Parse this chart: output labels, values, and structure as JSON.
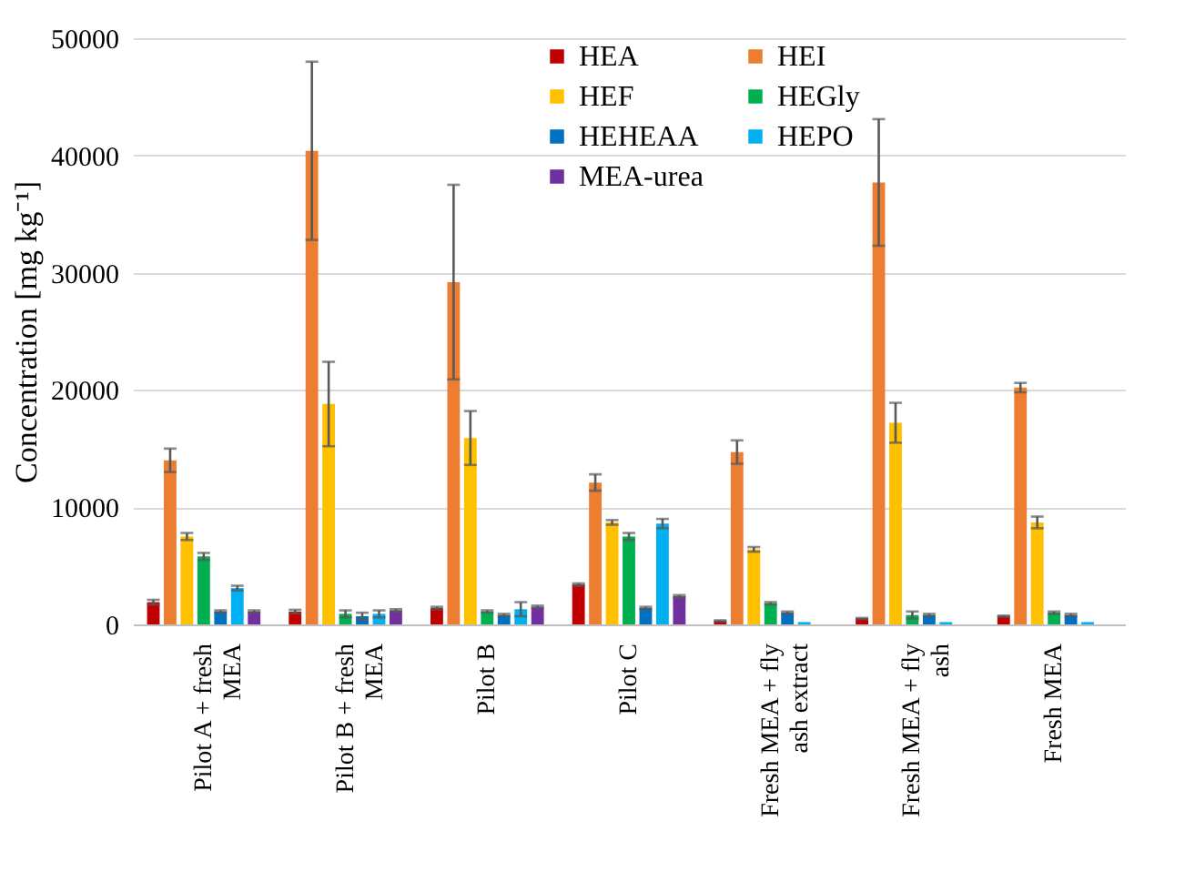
{
  "chart_data": {
    "type": "bar",
    "ylabel": "Concentration  [mg kg⁻¹]",
    "categories": [
      "Pilot A + fresh MEA",
      "Pilot B + fresh MEA",
      "Pilot B",
      "Pilot C",
      "Fresh MEA + fly ash extract",
      "Fresh MEA + fly ash",
      "Fresh MEA"
    ],
    "series": [
      {
        "name": "HEA",
        "color": "#c00000",
        "values": [
          1900,
          1100,
          1400,
          3400,
          300,
          500,
          700
        ],
        "errors": [
          200,
          150,
          100,
          100,
          50,
          50,
          50
        ]
      },
      {
        "name": "HEI",
        "color": "#ed7d31",
        "values": [
          14000,
          40400,
          29200,
          12100,
          14700,
          37700,
          20200
        ],
        "errors": [
          1000,
          7600,
          8300,
          700,
          1000,
          5400,
          400
        ]
      },
      {
        "name": "HEF",
        "color": "#ffc000",
        "values": [
          7500,
          18800,
          15900,
          8700,
          6400,
          17200,
          8700
        ],
        "errors": [
          300,
          3600,
          2300,
          200,
          200,
          1700,
          500
        ]
      },
      {
        "name": "HEGly",
        "color": "#00b050",
        "values": [
          5800,
          900,
          1100,
          7500,
          1800,
          800,
          1000
        ],
        "errors": [
          300,
          300,
          100,
          300,
          100,
          300,
          100
        ]
      },
      {
        "name": "HEHEAA",
        "color": "#0070c0",
        "values": [
          1100,
          700,
          800,
          1400,
          1000,
          800,
          800
        ],
        "errors": [
          100,
          300,
          100,
          100,
          100,
          100,
          100
        ]
      },
      {
        "name": "HEPO",
        "color": "#00b0f0",
        "values": [
          3100,
          900,
          1300,
          8600,
          200,
          200,
          200
        ],
        "errors": [
          200,
          300,
          600,
          400,
          null,
          null,
          null
        ]
      },
      {
        "name": "MEA-urea",
        "color": "#7030a0",
        "values": [
          1100,
          1200,
          1500,
          2400,
          null,
          null,
          null
        ],
        "errors": [
          100,
          100,
          100,
          100,
          null,
          null,
          null
        ]
      }
    ],
    "ylim": [
      0,
      50000
    ],
    "yticks": [
      0,
      10000,
      20000,
      30000,
      40000,
      50000
    ],
    "grid": "y",
    "legend": "top right"
  }
}
